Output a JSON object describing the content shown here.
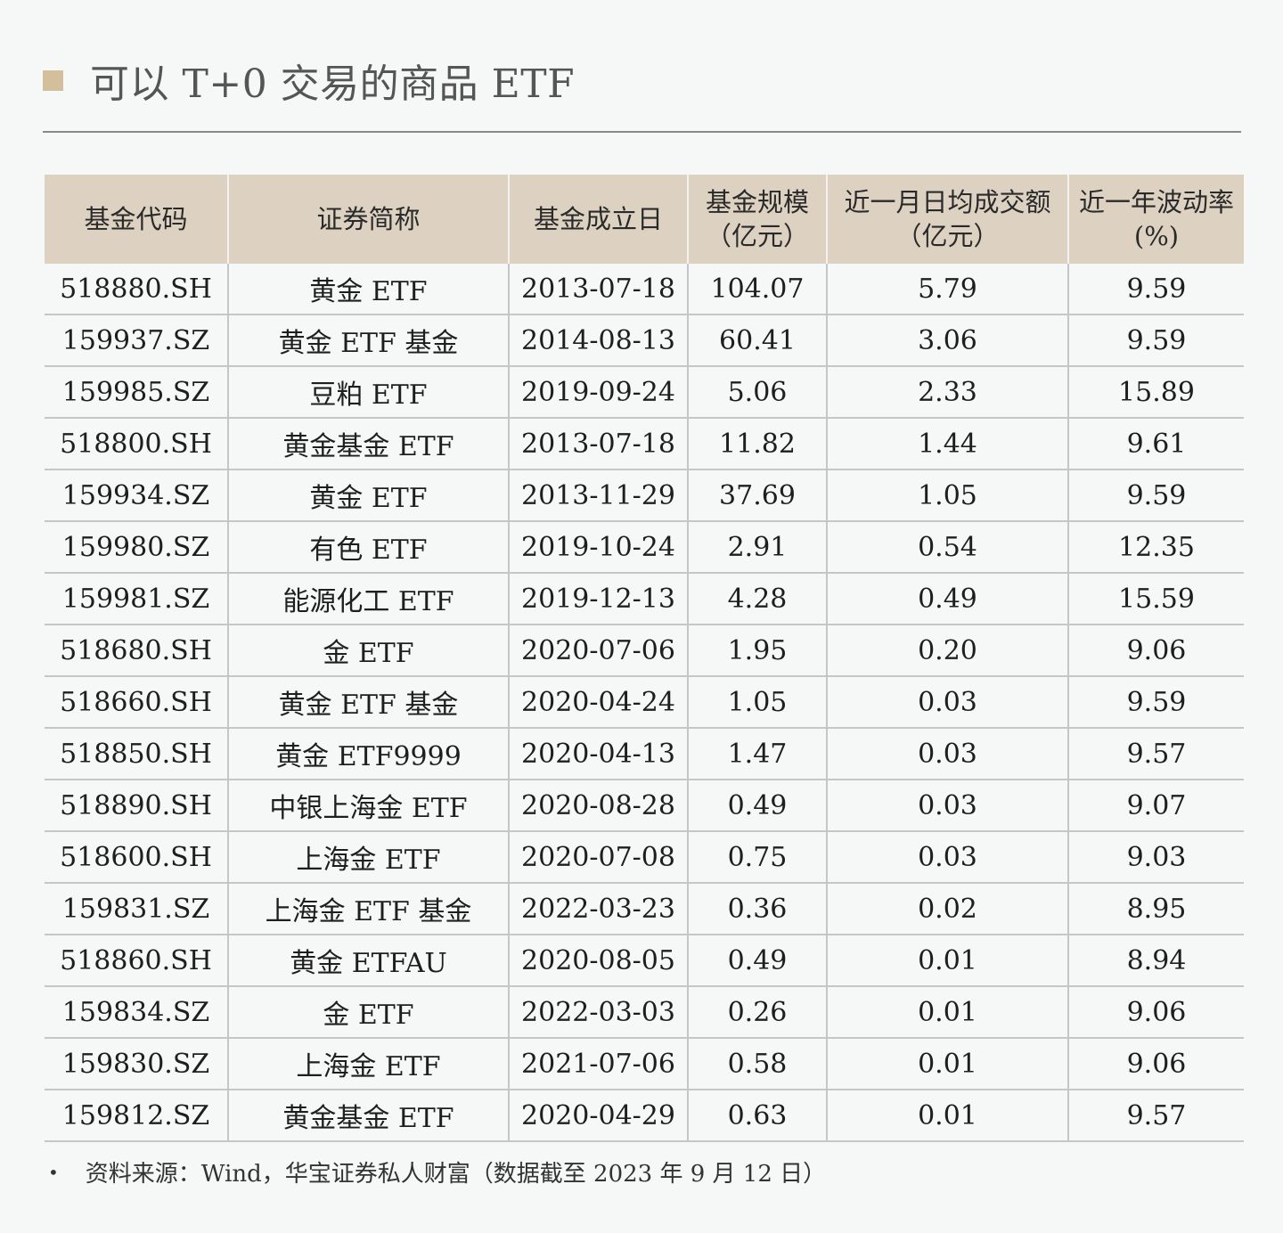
{
  "title": {
    "text": "可以 T+0 交易的商品 ETF",
    "accent_color": "#d4bf9c"
  },
  "table": {
    "header_bg": "#ddd2c1",
    "columns": [
      {
        "line1": "基金代码",
        "line2": ""
      },
      {
        "line1": "证券简称",
        "line2": ""
      },
      {
        "line1": "基金成立日",
        "line2": ""
      },
      {
        "line1": "基金规模",
        "line2": "（亿元）"
      },
      {
        "line1": "近一月日均成交额",
        "line2": "（亿元）"
      },
      {
        "line1": "近一年波动率",
        "line2": "(%)"
      }
    ],
    "rows": [
      [
        "518880.SH",
        "黄金 ETF",
        "2013-07-18",
        "104.07",
        "5.79",
        "9.59"
      ],
      [
        "159937.SZ",
        "黄金 ETF 基金",
        "2014-08-13",
        "60.41",
        "3.06",
        "9.59"
      ],
      [
        "159985.SZ",
        "豆粕 ETF",
        "2019-09-24",
        "5.06",
        "2.33",
        "15.89"
      ],
      [
        "518800.SH",
        "黄金基金 ETF",
        "2013-07-18",
        "11.82",
        "1.44",
        "9.61"
      ],
      [
        "159934.SZ",
        "黄金 ETF",
        "2013-11-29",
        "37.69",
        "1.05",
        "9.59"
      ],
      [
        "159980.SZ",
        "有色 ETF",
        "2019-10-24",
        "2.91",
        "0.54",
        "12.35"
      ],
      [
        "159981.SZ",
        "能源化工 ETF",
        "2019-12-13",
        "4.28",
        "0.49",
        "15.59"
      ],
      [
        "518680.SH",
        "金 ETF",
        "2020-07-06",
        "1.95",
        "0.20",
        "9.06"
      ],
      [
        "518660.SH",
        "黄金 ETF 基金",
        "2020-04-24",
        "1.05",
        "0.03",
        "9.59"
      ],
      [
        "518850.SH",
        "黄金 ETF9999",
        "2020-04-13",
        "1.47",
        "0.03",
        "9.57"
      ],
      [
        "518890.SH",
        "中银上海金 ETF",
        "2020-08-28",
        "0.49",
        "0.03",
        "9.07"
      ],
      [
        "518600.SH",
        "上海金 ETF",
        "2020-07-08",
        "0.75",
        "0.03",
        "9.03"
      ],
      [
        "159831.SZ",
        "上海金 ETF 基金",
        "2022-03-23",
        "0.36",
        "0.02",
        "8.95"
      ],
      [
        "518860.SH",
        "黄金 ETFAU",
        "2020-08-05",
        "0.49",
        "0.01",
        "8.94"
      ],
      [
        "159834.SZ",
        "金 ETF",
        "2022-03-03",
        "0.26",
        "0.01",
        "9.06"
      ],
      [
        "159830.SZ",
        "上海金 ETF",
        "2021-07-06",
        "0.58",
        "0.01",
        "9.06"
      ],
      [
        "159812.SZ",
        "黄金基金 ETF",
        "2020-04-29",
        "0.63",
        "0.01",
        "9.57"
      ]
    ]
  },
  "footnote": {
    "bullet": "•",
    "text": "资料来源：Wind，华宝证券私人财富（数据截至 2023 年 9 月 12 日）"
  },
  "chart_data": {
    "type": "table",
    "title": "可以 T+0 交易的商品 ETF",
    "columns": [
      "基金代码",
      "证券简称",
      "基金成立日",
      "基金规模（亿元）",
      "近一月日均成交额（亿元）",
      "近一年波动率(%)"
    ],
    "rows": [
      [
        "518880.SH",
        "黄金 ETF",
        "2013-07-18",
        104.07,
        5.79,
        9.59
      ],
      [
        "159937.SZ",
        "黄金 ETF 基金",
        "2014-08-13",
        60.41,
        3.06,
        9.59
      ],
      [
        "159985.SZ",
        "豆粕 ETF",
        "2019-09-24",
        5.06,
        2.33,
        15.89
      ],
      [
        "518800.SH",
        "黄金基金 ETF",
        "2013-07-18",
        11.82,
        1.44,
        9.61
      ],
      [
        "159934.SZ",
        "黄金 ETF",
        "2013-11-29",
        37.69,
        1.05,
        9.59
      ],
      [
        "159980.SZ",
        "有色 ETF",
        "2019-10-24",
        2.91,
        0.54,
        12.35
      ],
      [
        "159981.SZ",
        "能源化工 ETF",
        "2019-12-13",
        4.28,
        0.49,
        15.59
      ],
      [
        "518680.SH",
        "金 ETF",
        "2020-07-06",
        1.95,
        0.2,
        9.06
      ],
      [
        "518660.SH",
        "黄金 ETF 基金",
        "2020-04-24",
        1.05,
        0.03,
        9.59
      ],
      [
        "518850.SH",
        "黄金 ETF9999",
        "2020-04-13",
        1.47,
        0.03,
        9.57
      ],
      [
        "518890.SH",
        "中银上海金 ETF",
        "2020-08-28",
        0.49,
        0.03,
        9.07
      ],
      [
        "518600.SH",
        "上海金 ETF",
        "2020-07-08",
        0.75,
        0.03,
        9.03
      ],
      [
        "159831.SZ",
        "上海金 ETF 基金",
        "2022-03-23",
        0.36,
        0.02,
        8.95
      ],
      [
        "518860.SH",
        "黄金 ETFAU",
        "2020-08-05",
        0.49,
        0.01,
        8.94
      ],
      [
        "159834.SZ",
        "金 ETF",
        "2022-03-03",
        0.26,
        0.01,
        9.06
      ],
      [
        "159830.SZ",
        "上海金 ETF",
        "2021-07-06",
        0.58,
        0.01,
        9.06
      ],
      [
        "159812.SZ",
        "黄金基金 ETF",
        "2020-04-29",
        0.63,
        0.01,
        9.57
      ]
    ],
    "source": "资料来源：Wind，华宝证券私人财富（数据截至 2023 年 9 月 12 日）"
  }
}
